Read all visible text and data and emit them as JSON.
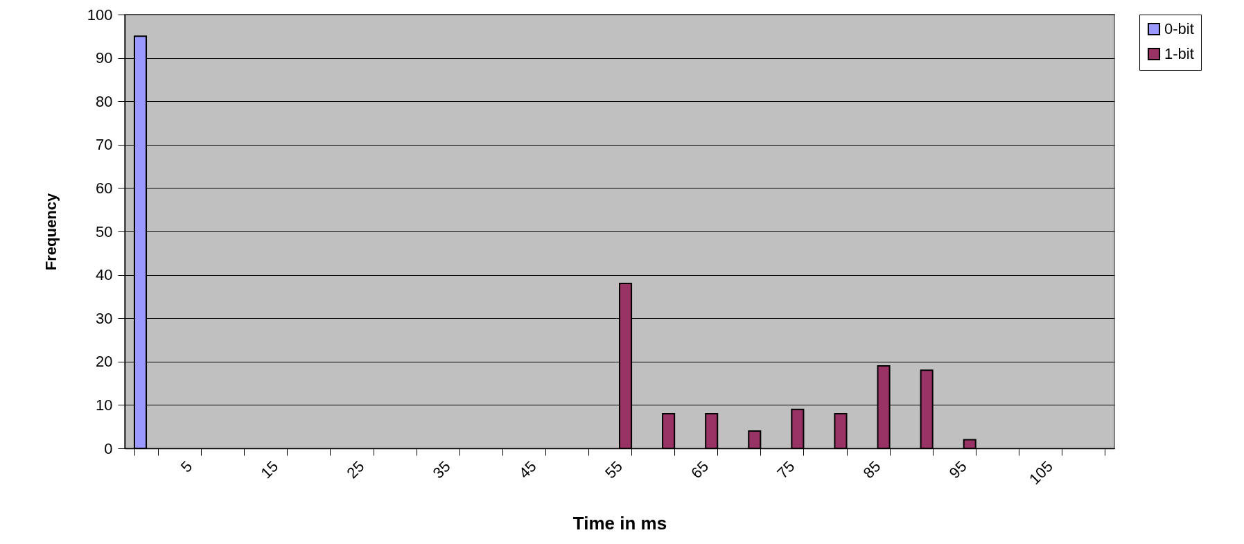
{
  "chart_data": {
    "type": "bar",
    "xlabel": "Time in ms",
    "ylabel": "Frequency",
    "categories": [
      null,
      "5",
      null,
      "15",
      null,
      "25",
      null,
      "35",
      null,
      "45",
      null,
      "55",
      null,
      "65",
      null,
      "75",
      null,
      "85",
      null,
      "95",
      null,
      "105",
      null
    ],
    "series": [
      {
        "name": "0-bit",
        "color": "#9999ff",
        "values": [
          95,
          null,
          null,
          null,
          null,
          null,
          null,
          null,
          null,
          null,
          null,
          null,
          null,
          null,
          null,
          null,
          null,
          null,
          null,
          null,
          null,
          null,
          null
        ]
      },
      {
        "name": "1-bit",
        "color": "#993366",
        "values": [
          null,
          null,
          null,
          null,
          null,
          null,
          null,
          null,
          null,
          null,
          null,
          38,
          8,
          8,
          4,
          9,
          8,
          19,
          18,
          2,
          null,
          null,
          null
        ]
      }
    ],
    "ylim": [
      0,
      100
    ],
    "yticks": [
      0,
      10,
      20,
      30,
      40,
      50,
      60,
      70,
      80,
      90,
      100
    ],
    "grid": "y",
    "legend": "right"
  }
}
